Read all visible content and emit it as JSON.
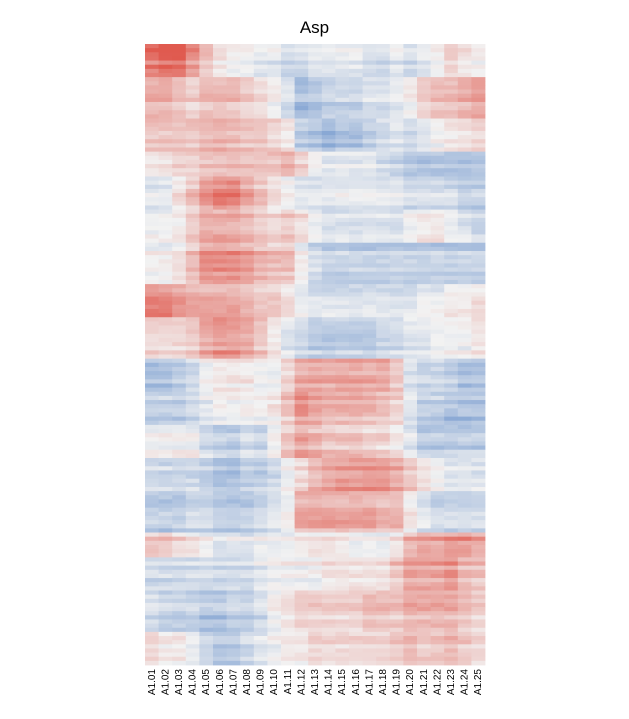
{
  "chart_data": {
    "type": "heatmap",
    "title": "Asp",
    "xlabel": "",
    "ylabel": "",
    "columns": [
      "A1.01",
      "A1.02",
      "A1.03",
      "A1.04",
      "A1.05",
      "A1.06",
      "A1.07",
      "A1.08",
      "A1.09",
      "A1.10",
      "A1.11",
      "A1.12",
      "A1.13",
      "A1.14",
      "A1.15",
      "A1.16",
      "A1.17",
      "A1.18",
      "A1.19",
      "A1.20",
      "A1.21",
      "A1.22",
      "A1.23",
      "A1.24",
      "A1.25"
    ],
    "row_tick_labels": "none",
    "color_scale": {
      "low": "#4f7fc4",
      "mid": "#f2f2f2",
      "high": "#e05a4f",
      "range": [
        -1,
        1
      ]
    },
    "row_blocks": [
      {
        "rows": 8,
        "values": [
          0.8,
          0.9,
          0.9,
          0.6,
          0.3,
          0.1,
          0.0,
          0.0,
          -0.1,
          -0.1,
          -0.2,
          -0.2,
          -0.1,
          -0.1,
          -0.1,
          -0.1,
          -0.2,
          -0.2,
          -0.1,
          -0.2,
          -0.1,
          0.0,
          0.2,
          0.1,
          0.0
        ]
      },
      {
        "rows": 10,
        "values": [
          0.4,
          0.4,
          0.3,
          0.2,
          0.3,
          0.3,
          0.3,
          0.2,
          0.1,
          0.0,
          -0.2,
          -0.5,
          -0.4,
          -0.3,
          -0.3,
          -0.3,
          -0.2,
          -0.2,
          -0.1,
          0.0,
          0.2,
          0.3,
          0.3,
          0.4,
          0.5
        ]
      },
      {
        "rows": 8,
        "values": [
          0.3,
          0.3,
          0.3,
          0.3,
          0.4,
          0.4,
          0.4,
          0.3,
          0.3,
          0.2,
          0.1,
          -0.3,
          -0.4,
          -0.5,
          -0.4,
          -0.4,
          -0.3,
          -0.2,
          -0.1,
          -0.2,
          -0.1,
          0.0,
          0.1,
          0.1,
          0.2
        ]
      },
      {
        "rows": 6,
        "values": [
          0.1,
          0.1,
          0.2,
          0.2,
          0.3,
          0.3,
          0.3,
          0.3,
          0.3,
          0.3,
          0.4,
          0.2,
          0.0,
          -0.1,
          -0.1,
          -0.1,
          -0.1,
          -0.2,
          -0.3,
          -0.4,
          -0.4,
          -0.4,
          -0.4,
          -0.4,
          -0.4
        ]
      },
      {
        "rows": 8,
        "values": [
          -0.1,
          -0.1,
          0.1,
          0.3,
          0.6,
          0.7,
          0.7,
          0.5,
          0.3,
          0.1,
          0.0,
          -0.1,
          -0.1,
          -0.1,
          -0.1,
          -0.1,
          -0.1,
          -0.1,
          -0.1,
          -0.2,
          -0.2,
          -0.2,
          -0.2,
          -0.3,
          -0.3
        ]
      },
      {
        "rows": 8,
        "values": [
          0.0,
          0.0,
          0.1,
          0.3,
          0.5,
          0.5,
          0.5,
          0.4,
          0.3,
          0.2,
          0.3,
          0.2,
          0.0,
          -0.1,
          -0.1,
          -0.1,
          -0.1,
          -0.1,
          -0.1,
          0.0,
          0.1,
          0.1,
          0.0,
          -0.1,
          -0.2
        ]
      },
      {
        "rows": 10,
        "values": [
          0.0,
          0.0,
          0.1,
          0.3,
          0.6,
          0.6,
          0.6,
          0.5,
          0.4,
          0.3,
          0.3,
          0.0,
          -0.2,
          -0.3,
          -0.3,
          -0.3,
          -0.3,
          -0.3,
          -0.3,
          -0.3,
          -0.3,
          -0.3,
          -0.3,
          -0.3,
          -0.3
        ]
      },
      {
        "rows": 8,
        "values": [
          0.6,
          0.6,
          0.5,
          0.4,
          0.4,
          0.4,
          0.4,
          0.3,
          0.2,
          0.2,
          0.1,
          -0.1,
          -0.2,
          -0.2,
          -0.2,
          -0.2,
          -0.2,
          -0.2,
          -0.2,
          -0.2,
          -0.1,
          -0.1,
          0.0,
          0.0,
          0.1
        ]
      },
      {
        "rows": 10,
        "values": [
          0.2,
          0.2,
          0.2,
          0.3,
          0.5,
          0.6,
          0.6,
          0.5,
          0.3,
          0.1,
          -0.1,
          -0.2,
          -0.3,
          -0.3,
          -0.3,
          -0.3,
          -0.3,
          -0.2,
          -0.2,
          -0.1,
          -0.1,
          0.0,
          0.0,
          0.0,
          0.1
        ]
      },
      {
        "rows": 8,
        "values": [
          -0.4,
          -0.4,
          -0.3,
          -0.2,
          0.0,
          0.1,
          0.1,
          0.1,
          0.0,
          0.0,
          0.2,
          0.5,
          0.5,
          0.5,
          0.5,
          0.5,
          0.5,
          0.5,
          0.3,
          -0.1,
          -0.2,
          -0.2,
          -0.3,
          -0.4,
          -0.4
        ]
      },
      {
        "rows": 8,
        "values": [
          -0.3,
          -0.3,
          -0.3,
          -0.2,
          -0.1,
          0.0,
          0.0,
          0.0,
          0.0,
          0.1,
          0.3,
          0.6,
          0.5,
          0.4,
          0.4,
          0.4,
          0.4,
          0.3,
          0.2,
          -0.1,
          -0.3,
          -0.3,
          -0.4,
          -0.4,
          -0.4
        ]
      },
      {
        "rows": 8,
        "values": [
          0.0,
          0.0,
          0.0,
          0.0,
          -0.2,
          -0.3,
          -0.3,
          -0.2,
          -0.2,
          0.0,
          0.3,
          0.5,
          0.4,
          0.3,
          0.3,
          0.3,
          0.2,
          0.2,
          0.1,
          -0.1,
          -0.3,
          -0.3,
          -0.3,
          -0.3,
          -0.3
        ]
      },
      {
        "rows": 8,
        "values": [
          -0.2,
          -0.2,
          -0.2,
          -0.2,
          -0.3,
          -0.4,
          -0.4,
          -0.3,
          -0.3,
          -0.2,
          0.0,
          0.2,
          0.4,
          0.5,
          0.6,
          0.6,
          0.6,
          0.6,
          0.5,
          0.3,
          0.1,
          0.0,
          -0.1,
          -0.1,
          -0.1
        ]
      },
      {
        "rows": 10,
        "values": [
          -0.3,
          -0.3,
          -0.3,
          -0.2,
          -0.2,
          -0.3,
          -0.3,
          -0.3,
          -0.2,
          -0.1,
          0.0,
          0.5,
          0.5,
          0.5,
          0.5,
          0.5,
          0.5,
          0.4,
          0.4,
          0.1,
          -0.1,
          -0.2,
          -0.2,
          -0.2,
          -0.2
        ]
      },
      {
        "rows": 6,
        "values": [
          0.3,
          0.3,
          0.2,
          0.1,
          0.0,
          -0.1,
          -0.1,
          -0.1,
          0.0,
          0.0,
          0.0,
          0.1,
          0.1,
          0.1,
          0.1,
          0.0,
          0.0,
          0.0,
          0.1,
          0.4,
          0.5,
          0.5,
          0.6,
          0.6,
          0.5
        ]
      },
      {
        "rows": 8,
        "values": [
          -0.2,
          -0.2,
          -0.2,
          -0.2,
          -0.2,
          -0.2,
          -0.2,
          -0.2,
          -0.1,
          0.0,
          0.0,
          0.0,
          0.0,
          0.1,
          0.1,
          0.1,
          0.1,
          0.1,
          0.3,
          0.5,
          0.5,
          0.5,
          0.6,
          0.4,
          0.3
        ]
      },
      {
        "rows": 10,
        "values": [
          -0.2,
          -0.3,
          -0.3,
          -0.3,
          -0.4,
          -0.4,
          -0.3,
          -0.3,
          -0.2,
          0.0,
          0.1,
          0.2,
          0.2,
          0.2,
          0.2,
          0.2,
          0.3,
          0.3,
          0.3,
          0.4,
          0.4,
          0.4,
          0.4,
          0.3,
          0.2
        ]
      },
      {
        "rows": 8,
        "values": [
          0.2,
          0.1,
          0.1,
          0.0,
          -0.2,
          -0.3,
          -0.3,
          -0.2,
          -0.1,
          0.0,
          0.1,
          0.1,
          0.2,
          0.2,
          0.2,
          0.2,
          0.2,
          0.2,
          0.3,
          0.4,
          0.3,
          0.3,
          0.4,
          0.3,
          0.2
        ]
      }
    ]
  }
}
